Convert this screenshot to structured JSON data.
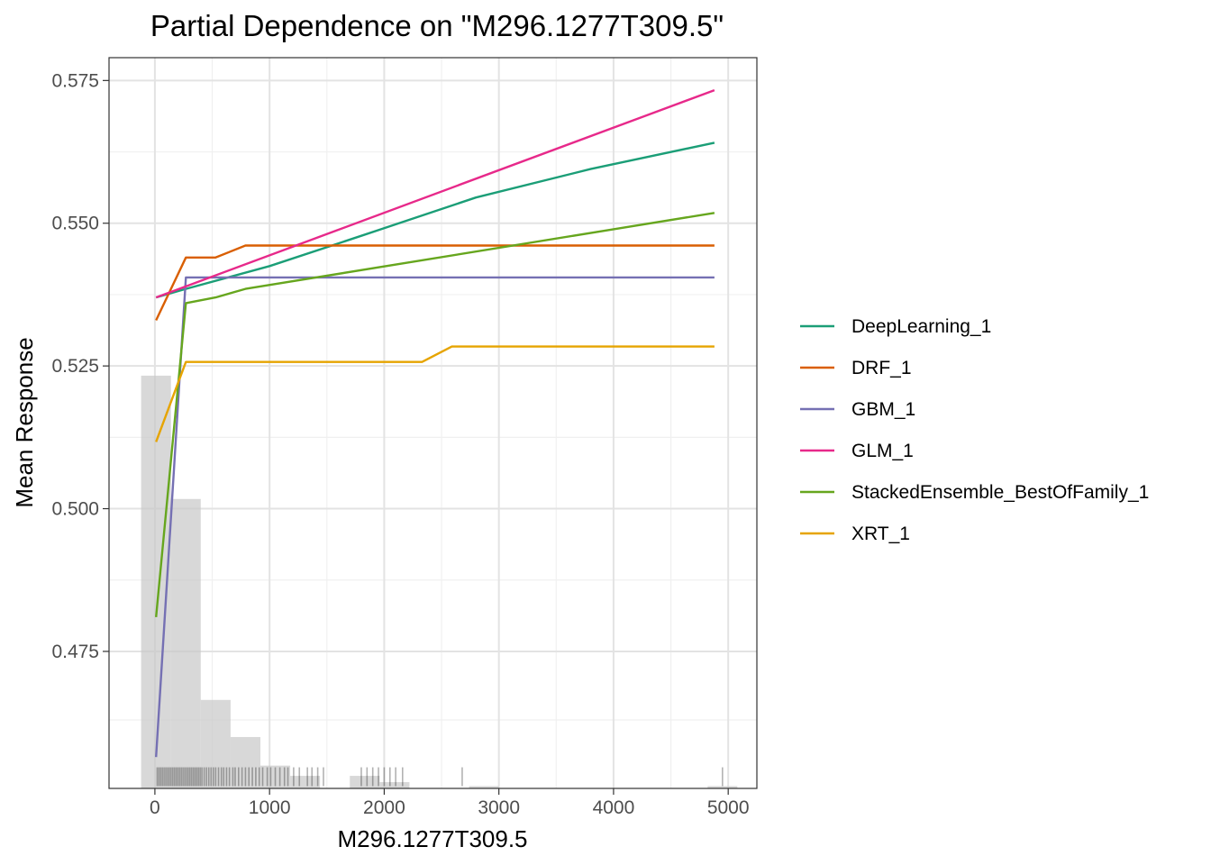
{
  "chart_data": {
    "type": "line",
    "title": "Partial Dependence on \"M296.1277T309.5\"",
    "xlabel": "M296.1277T309.5",
    "ylabel": "Mean Response",
    "xlim": [
      -400,
      5250
    ],
    "ylim": [
      0.451,
      0.579
    ],
    "x_ticks": [
      0,
      1000,
      2000,
      3000,
      4000,
      5000
    ],
    "x_tick_labels": [
      "0",
      "1000",
      "2000",
      "3000",
      "4000",
      "5000"
    ],
    "y_ticks": [
      0.475,
      0.5,
      0.525,
      0.55,
      0.575
    ],
    "y_tick_labels": [
      "0.475",
      "0.500",
      "0.525",
      "0.550",
      "0.575"
    ],
    "grid": true,
    "legend_position": "right",
    "series": [
      {
        "name": "DeepLearning_1",
        "color": "#1B9E77",
        "x": [
          10,
          270,
          1000,
          1800,
          2800,
          3800,
          4880
        ],
        "y": [
          0.537,
          0.5385,
          0.5425,
          0.5478,
          0.5545,
          0.5595,
          0.5641
        ]
      },
      {
        "name": "DRF_1",
        "color": "#D95F02",
        "x": [
          10,
          270,
          530,
          790,
          4880
        ],
        "y": [
          0.533,
          0.544,
          0.544,
          0.5461,
          0.5461
        ]
      },
      {
        "name": "GBM_1",
        "color": "#7570B3",
        "x": [
          10,
          270,
          4880
        ],
        "y": [
          0.4565,
          0.5405,
          0.5405
        ]
      },
      {
        "name": "GLM_1",
        "color": "#E7298A",
        "x": [
          10,
          4880
        ],
        "y": [
          0.537,
          0.5733
        ]
      },
      {
        "name": "StackedEnsemble_BestOfFamily_1",
        "color": "#66A61E",
        "x": [
          10,
          270,
          530,
          790,
          4880
        ],
        "y": [
          0.481,
          0.536,
          0.537,
          0.5385,
          0.5518
        ]
      },
      {
        "name": "XRT_1",
        "color": "#E6A400",
        "x": [
          10,
          270,
          2330,
          2590,
          4880
        ],
        "y": [
          0.5117,
          0.5257,
          0.5257,
          0.5284,
          0.5284
        ]
      }
    ],
    "histogram": {
      "bin_width": 260,
      "bins": [
        {
          "x": 10,
          "y": 0.5233
        },
        {
          "x": 270,
          "y": 0.5017
        },
        {
          "x": 530,
          "y": 0.4665
        },
        {
          "x": 790,
          "y": 0.46
        },
        {
          "x": 1050,
          "y": 0.455
        },
        {
          "x": 1310,
          "y": 0.4532
        },
        {
          "x": 1830,
          "y": 0.4532
        },
        {
          "x": 2090,
          "y": 0.4521
        },
        {
          "x": 2870,
          "y": 0.4514
        },
        {
          "x": 4950,
          "y": 0.4514
        }
      ]
    },
    "rug_x": [
      20,
      35,
      50,
      65,
      80,
      95,
      110,
      125,
      140,
      155,
      170,
      185,
      200,
      215,
      230,
      245,
      260,
      275,
      290,
      305,
      320,
      335,
      350,
      365,
      380,
      395,
      410,
      430,
      450,
      470,
      490,
      510,
      530,
      555,
      580,
      600,
      625,
      650,
      680,
      700,
      730,
      760,
      790,
      820,
      850,
      880,
      910,
      940,
      980,
      1010,
      1050,
      1090,
      1130,
      1160,
      1210,
      1260,
      1330,
      1370,
      1420,
      1470,
      1800,
      1850,
      1900,
      1950,
      2000,
      2050,
      2100,
      2160,
      2680,
      4950
    ]
  }
}
